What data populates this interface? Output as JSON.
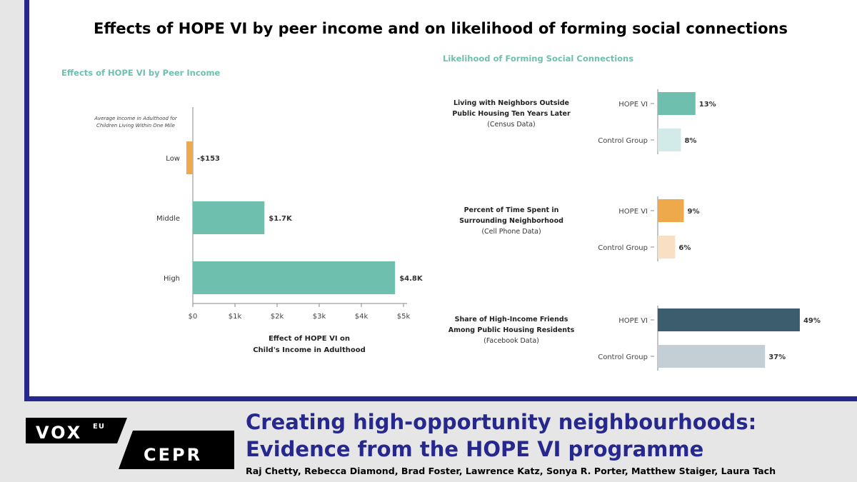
{
  "main_title": "Effects of HOPE VI by peer income and on likelihood of forming social connections",
  "colors": {
    "accent_blue": "#26288e",
    "teal": "#6fbfaf",
    "light_teal": "#d2ebe8",
    "orange": "#eeaa4a",
    "light_orange": "#f9e0c4",
    "dark_slate": "#3c5d6e",
    "light_slate": "#c4ced5",
    "panel_title": "#6fbfaf"
  },
  "chart_data": [
    {
      "type": "bar",
      "orientation": "horizontal",
      "title": "Effects of HOPE VI by Peer Income",
      "yaxis_note": "Average Income in Adulthood for Children Living Within One Mile",
      "categories": [
        "Low",
        "Middle",
        "High"
      ],
      "values": [
        -153,
        1700,
        4800
      ],
      "value_labels": [
        "-$153",
        "$1.7K",
        "$4.8K"
      ],
      "bar_colors": [
        "#eeaa4a",
        "#6fbfaf",
        "#6fbfaf"
      ],
      "xlim": [
        0,
        5000
      ],
      "xticks": [
        0,
        1000,
        2000,
        3000,
        4000,
        5000
      ],
      "xtick_labels": [
        "$0",
        "$1k",
        "$2k",
        "$3k",
        "$4k",
        "$5k"
      ],
      "xlabel": [
        "Effect of HOPE VI on",
        "Child's Income in Adulthood"
      ],
      "grid": false
    },
    {
      "type": "bar",
      "orientation": "horizontal",
      "title": "Likelihood of Forming Social Connections",
      "xlim": [
        0,
        50
      ],
      "grid": false,
      "groups": [
        {
          "label": [
            "Living with Neighbors Outside",
            "Public Housing Ten Years Later"
          ],
          "source": "(Census Data)",
          "categories": [
            "HOPE VI",
            "Control Group"
          ],
          "values": [
            13,
            8
          ],
          "value_labels": [
            "13%",
            "8%"
          ],
          "bar_colors": [
            "#6fbfaf",
            "#d2ebe8"
          ]
        },
        {
          "label": [
            "Percent of Time Spent in",
            "Surrounding Neighborhood"
          ],
          "source": "(Cell Phone Data)",
          "categories": [
            "HOPE VI",
            "Control Group"
          ],
          "values": [
            9,
            6
          ],
          "value_labels": [
            "9%",
            "6%"
          ],
          "bar_colors": [
            "#eeaa4a",
            "#f9e0c4"
          ]
        },
        {
          "label": [
            "Share of High-Income Friends",
            "Among Public Housing Residents"
          ],
          "source": "(Facebook Data)",
          "categories": [
            "HOPE VI",
            "Control Group"
          ],
          "values": [
            49,
            37
          ],
          "value_labels": [
            "49%",
            "37%"
          ],
          "bar_colors": [
            "#3c5d6e",
            "#c4ced5"
          ]
        }
      ]
    }
  ],
  "footer": {
    "logo_vox": "VOX",
    "logo_eu": "EU",
    "logo_cepr": "CEPR",
    "title_line1": "Creating high-opportunity neighbourhoods:",
    "title_line2": "Evidence from the HOPE VI programme",
    "authors": "Raj Chetty, Rebecca Diamond, Brad Foster, Lawrence Katz, Sonya R. Porter, Matthew Staiger, Laura Tach"
  }
}
